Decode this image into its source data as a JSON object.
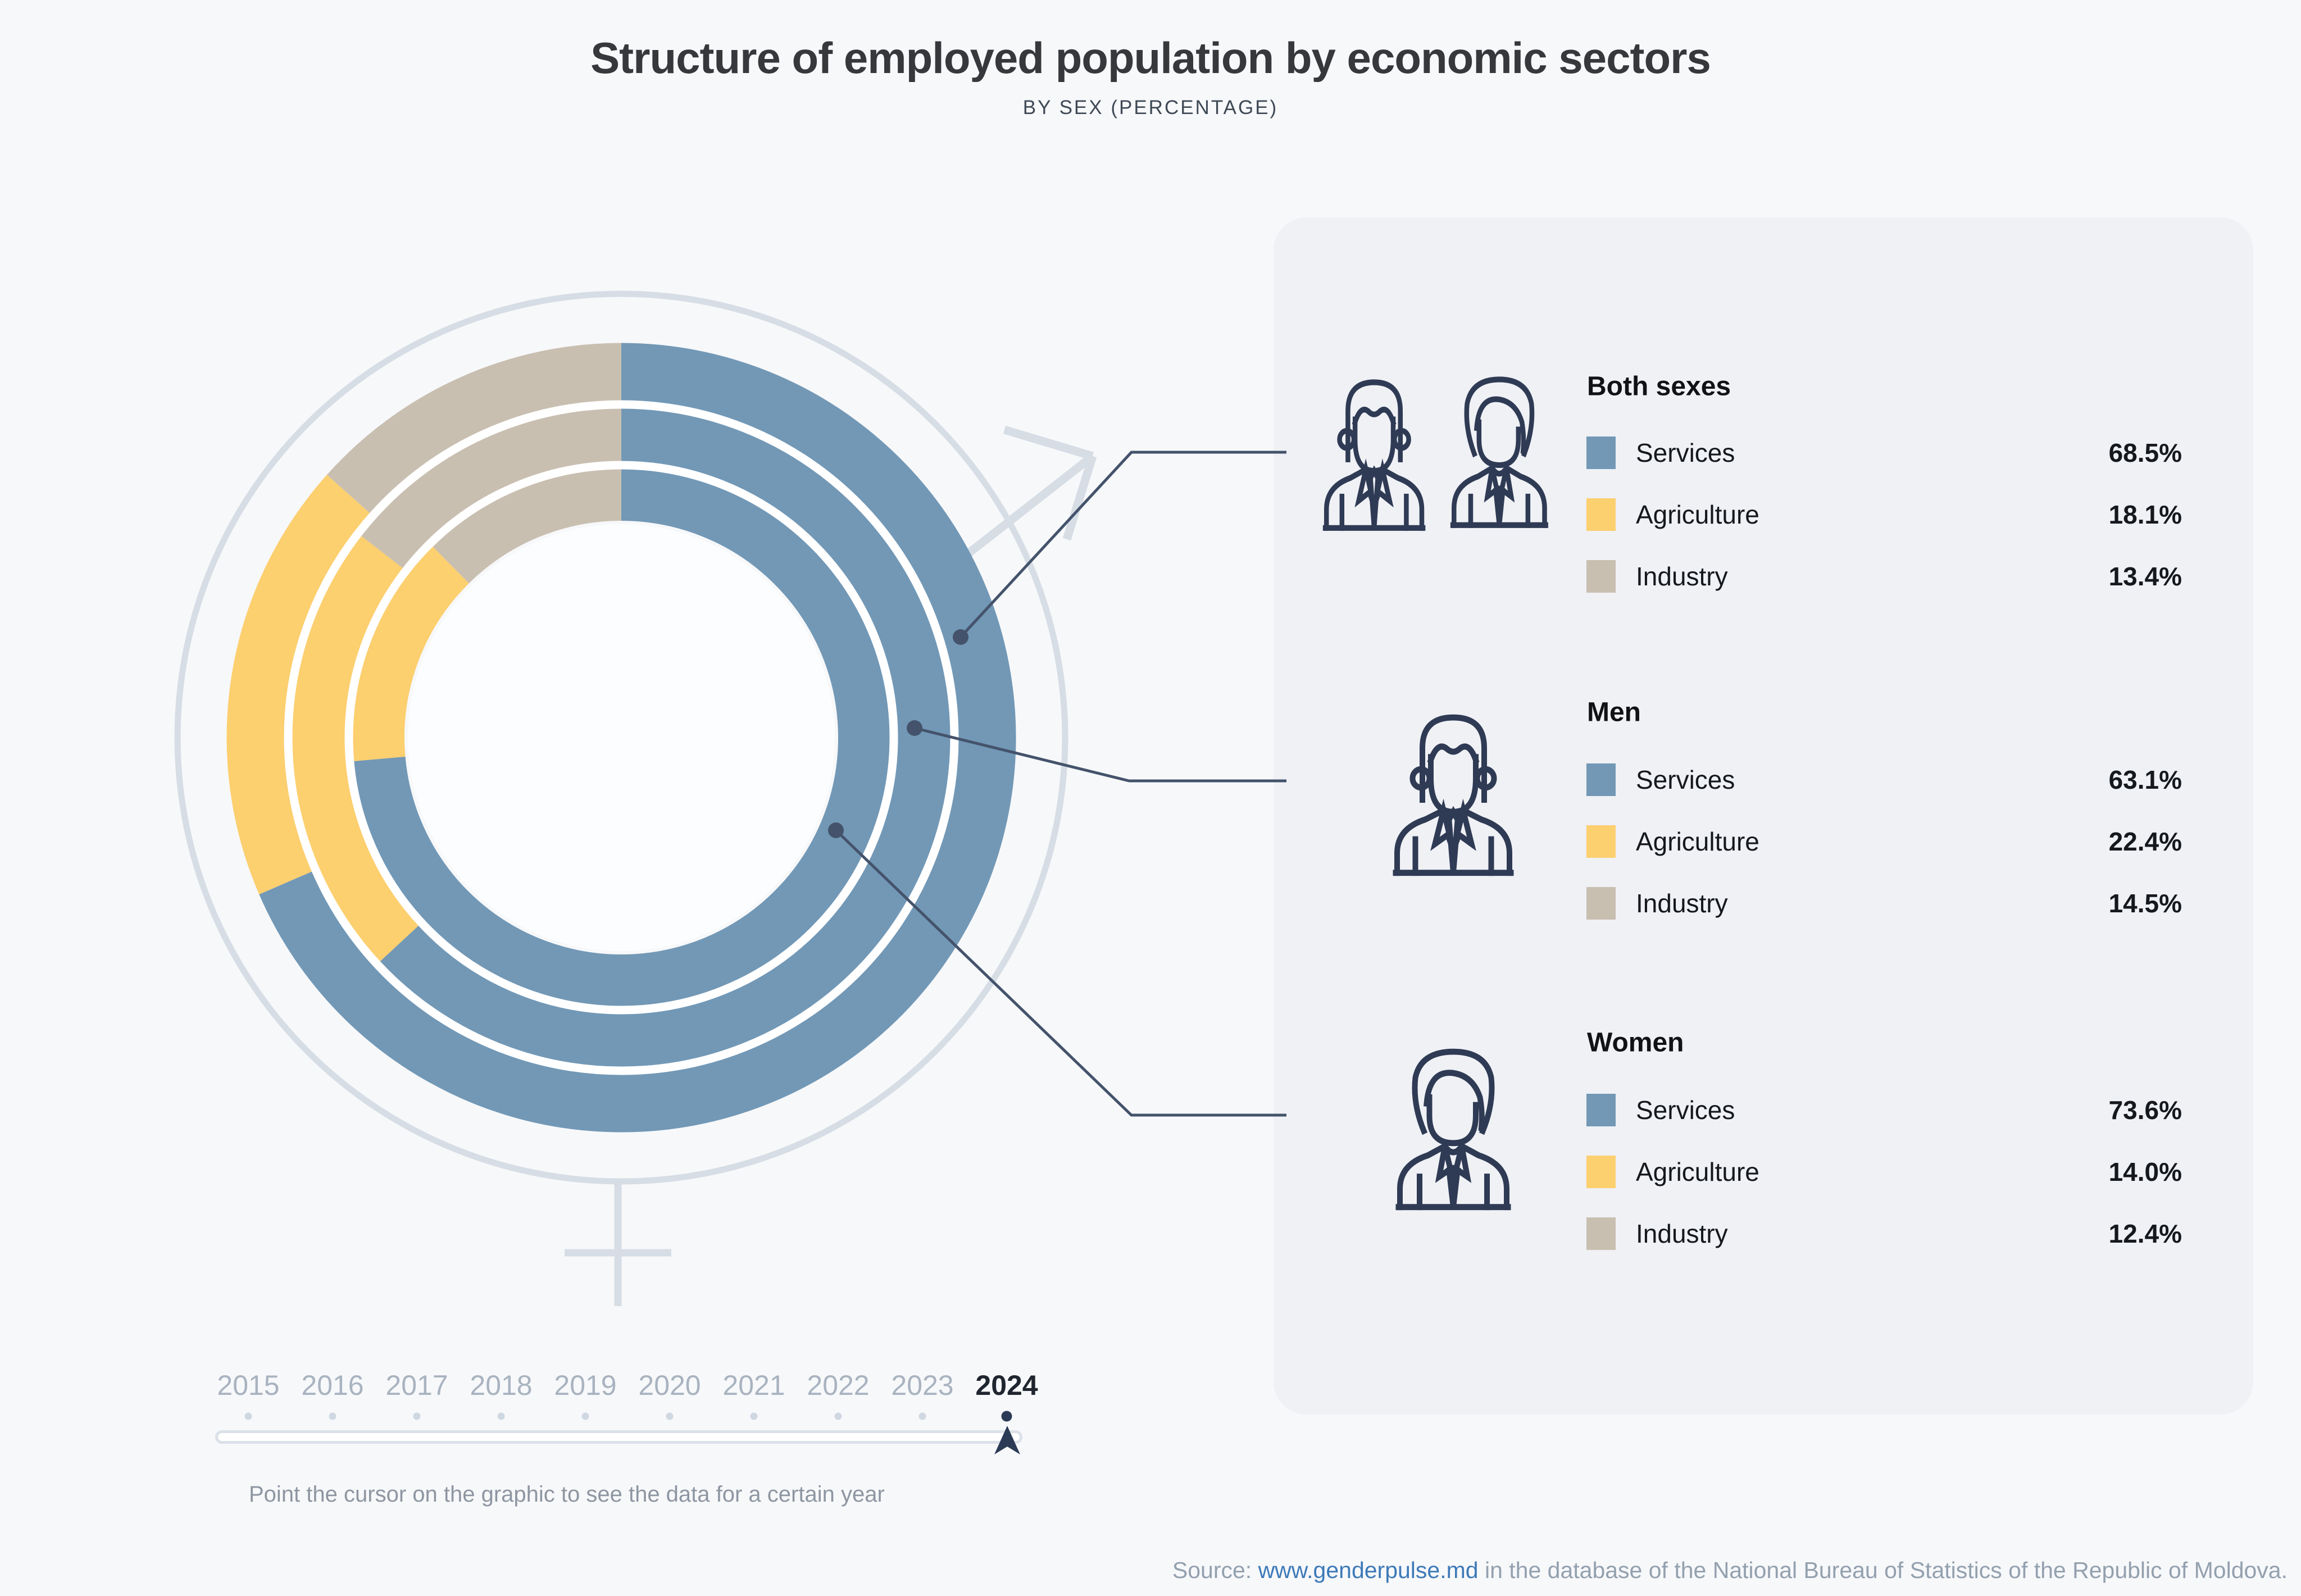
{
  "title": "Structure of employed population by economic sectors",
  "subtitle": "BY SEX (PERCENTAGE)",
  "colors": {
    "services": "#7298b6",
    "agriculture": "#fccf6f",
    "industry": "#c9bfb1",
    "leader": "#44536b",
    "icon_stroke": "#2f3a54",
    "symbol": "#d6dde5",
    "active": "#2b3a55",
    "link": "#3d7ab8",
    "panel_bg": "#eff1f5",
    "page_bg": "#f7f8fa"
  },
  "chart_data": {
    "type": "donut-multi-ring",
    "title": "Structure of employed population by economic sectors",
    "subtitle": "BY SEX (PERCENTAGE)",
    "year_shown": "2024",
    "units": "%",
    "sectors": [
      "Services",
      "Agriculture",
      "Industry"
    ],
    "rings_outer_to_inner": [
      {
        "name": "Both sexes",
        "values": {
          "Services": 68.5,
          "Agriculture": 18.1,
          "Industry": 13.4
        }
      },
      {
        "name": "Men",
        "values": {
          "Services": 63.1,
          "Agriculture": 22.4,
          "Industry": 14.5
        }
      },
      {
        "name": "Women",
        "values": {
          "Services": 73.6,
          "Agriculture": 14.0,
          "Industry": 12.4
        }
      }
    ],
    "start_angle_deg": 0,
    "direction": "clockwise",
    "legend_position": "right"
  },
  "legend": {
    "groups": [
      {
        "name": "Both sexes",
        "icon": "man-woman-icon",
        "rows": [
          {
            "label": "Services",
            "value": "68.5%",
            "color_key": "services"
          },
          {
            "label": "Agriculture",
            "value": "18.1%",
            "color_key": "agriculture"
          },
          {
            "label": "Industry",
            "value": "13.4%",
            "color_key": "industry"
          }
        ]
      },
      {
        "name": "Men",
        "icon": "man-icon",
        "rows": [
          {
            "label": "Services",
            "value": "63.1%",
            "color_key": "services"
          },
          {
            "label": "Agriculture",
            "value": "22.4%",
            "color_key": "agriculture"
          },
          {
            "label": "Industry",
            "value": "14.5%",
            "color_key": "industry"
          }
        ]
      },
      {
        "name": "Women",
        "icon": "woman-icon",
        "rows": [
          {
            "label": "Services",
            "value": "73.6%",
            "color_key": "services"
          },
          {
            "label": "Agriculture",
            "value": "14.0%",
            "color_key": "agriculture"
          },
          {
            "label": "Industry",
            "value": "12.4%",
            "color_key": "industry"
          }
        ]
      }
    ]
  },
  "timeline": {
    "years": [
      "2015",
      "2016",
      "2017",
      "2018",
      "2019",
      "2020",
      "2021",
      "2022",
      "2023",
      "2024"
    ],
    "selected_year": "2024",
    "hint": "Point the cursor on the graphic to see the data for a certain year"
  },
  "source": {
    "prefix": "Source: ",
    "link_text": "www.genderpulse.md",
    "suffix": " in the database of the National Bureau of Statistics of the Republic of Moldova."
  }
}
